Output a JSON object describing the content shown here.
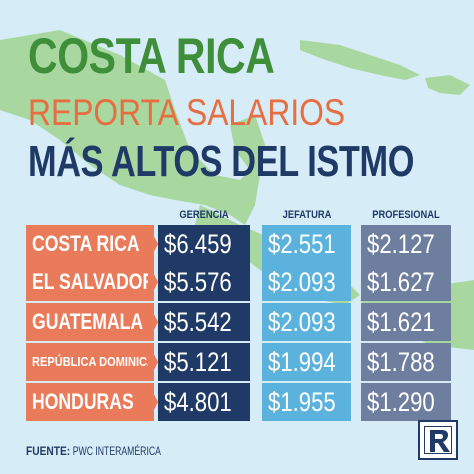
{
  "title": {
    "line1": "COSTA RICA",
    "line2": "REPORTA SALARIOS",
    "line3": "MÁS ALTOS DEL ISTMO"
  },
  "source": {
    "label": "FUENTE:",
    "text": "PWC INTERAMÉRICA"
  },
  "colors": {
    "title_green": "#3f8f3a",
    "title_orange": "#e66e40",
    "title_navy": "#1f3a66",
    "country_bg": "#ea7b5a",
    "gerencia_bg": "#1f3a66",
    "jefatura_bg": "#5bb3dd",
    "profesional_bg": "#6e7e9e",
    "background": "#d6ecf6",
    "map_land": "#a8d8a0"
  },
  "chart_data": {
    "type": "table",
    "columns": [
      "GERENCIA",
      "JEFATURA",
      "PROFESIONAL"
    ],
    "rows": [
      {
        "country": "COSTA RICA",
        "values": [
          "$6.459",
          "$2.551",
          "$2.127"
        ]
      },
      {
        "country": "EL SALVADOR",
        "values": [
          "$5.576",
          "$2.093",
          "$1.627"
        ]
      },
      {
        "country": "GUATEMALA",
        "values": [
          "$5.542",
          "$2.093",
          "$1.621"
        ]
      },
      {
        "country": "REPÚBLICA DOMINICANA",
        "values": [
          "$5.121",
          "$1.994",
          "$1.788"
        ]
      },
      {
        "country": "HONDURAS",
        "values": [
          "$4.801",
          "$1.955",
          "$1.290"
        ]
      }
    ]
  }
}
